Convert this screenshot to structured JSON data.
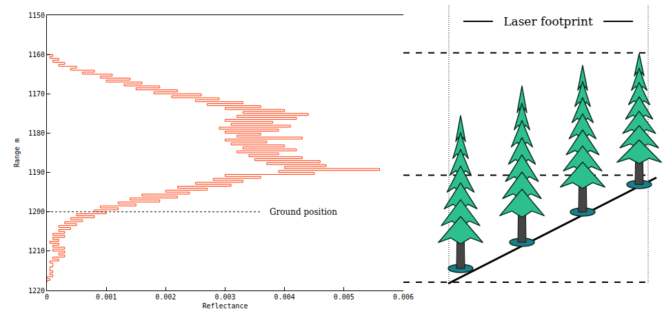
{
  "chart_data": {
    "type": "line",
    "x_title": "Reflectance",
    "y_title": "Range m",
    "color": "#ff3300",
    "line_style": "steps",
    "grid": false,
    "xlim": [
      0,
      0.006
    ],
    "xticks": [
      0,
      0.001,
      0.002,
      0.003,
      0.004,
      0.005,
      0.006
    ],
    "ylim": [
      1220,
      1150
    ],
    "yticks": [
      1150,
      1160,
      1170,
      1180,
      1190,
      1200,
      1210,
      1220
    ],
    "y": [
      1160.0,
      1160.5,
      1161.0,
      1161.5,
      1162.0,
      1162.5,
      1163.0,
      1163.5,
      1164.0,
      1164.5,
      1165.0,
      1165.5,
      1166.0,
      1166.5,
      1167.0,
      1167.5,
      1168.0,
      1168.5,
      1169.0,
      1169.5,
      1170.0,
      1170.5,
      1171.0,
      1171.5,
      1172.0,
      1172.5,
      1173.0,
      1173.5,
      1174.0,
      1174.5,
      1175.0,
      1175.5,
      1176.0,
      1176.5,
      1177.0,
      1177.5,
      1178.0,
      1178.5,
      1179.0,
      1179.5,
      1180.0,
      1180.5,
      1181.0,
      1181.5,
      1182.0,
      1182.5,
      1183.0,
      1183.5,
      1184.0,
      1184.5,
      1185.0,
      1185.5,
      1186.0,
      1186.5,
      1187.0,
      1187.5,
      1188.0,
      1188.5,
      1189.0,
      1189.5,
      1190.0,
      1190.5,
      1191.0,
      1191.5,
      1192.0,
      1192.5,
      1193.0,
      1193.5,
      1194.0,
      1194.5,
      1195.0,
      1195.5,
      1196.0,
      1196.5,
      1197.0,
      1197.5,
      1198.0,
      1198.5,
      1199.0,
      1199.5,
      1200.0,
      1200.5,
      1201.0,
      1201.5,
      1202.0,
      1202.5,
      1203.0,
      1203.5,
      1204.0,
      1204.5,
      1205.0,
      1205.5,
      1206.0,
      1206.5,
      1207.0,
      1207.5,
      1208.0,
      1208.5,
      1209.0,
      1209.5,
      1210.0,
      1210.5,
      1211.0,
      1211.5,
      1212.0,
      1212.5,
      1213.0,
      1213.5,
      1214.0,
      1214.5,
      1215.0,
      1215.5,
      1216.0,
      1216.5,
      1217.0,
      1217.5,
      1218.0
    ],
    "x": [
      0.0,
      0.0001,
      5e-05,
      0.0002,
      0.0001,
      0.0003,
      0.0002,
      0.0005,
      0.0004,
      0.0008,
      0.0006,
      0.0011,
      0.0009,
      0.0014,
      0.001,
      0.0016,
      0.0013,
      0.0019,
      0.0015,
      0.0022,
      0.0018,
      0.0026,
      0.0021,
      0.0029,
      0.0025,
      0.0033,
      0.0027,
      0.0036,
      0.003,
      0.004,
      0.0033,
      0.0044,
      0.0032,
      0.0042,
      0.003,
      0.0038,
      0.0031,
      0.0041,
      0.0029,
      0.0039,
      0.003,
      0.0036,
      0.0032,
      0.0043,
      0.003,
      0.0037,
      0.0031,
      0.004,
      0.0033,
      0.0042,
      0.0032,
      0.0039,
      0.0034,
      0.0043,
      0.0035,
      0.0046,
      0.0037,
      0.0047,
      0.004,
      0.0056,
      0.0039,
      0.0045,
      0.003,
      0.0036,
      0.0028,
      0.0033,
      0.0025,
      0.0031,
      0.0022,
      0.0027,
      0.002,
      0.0024,
      0.0016,
      0.0022,
      0.0014,
      0.0019,
      0.0012,
      0.0015,
      0.0009,
      0.0012,
      0.0008,
      0.001,
      0.0005,
      0.0008,
      0.0004,
      0.0006,
      0.0003,
      0.0005,
      0.0002,
      0.0004,
      0.0002,
      0.0003,
      0.0001,
      0.0003,
      0.0001,
      0.0002,
      5e-05,
      0.0002,
      0.0001,
      0.0003,
      0.0001,
      0.0003,
      0.0002,
      0.0003,
      0.0001,
      0.0002,
      5e-05,
      0.0001,
      0.0001,
      5e-05,
      5e-05,
      0.0001,
      5e-05,
      0.0001,
      0.0,
      5e-05,
      0.0
    ],
    "reference_lines": [
      1159.6,
      1190.7,
      1217.9
    ],
    "annotations": [
      {
        "text": "Ground position",
        "y": 1200
      }
    ],
    "footprint_label": "Laser footprint"
  }
}
